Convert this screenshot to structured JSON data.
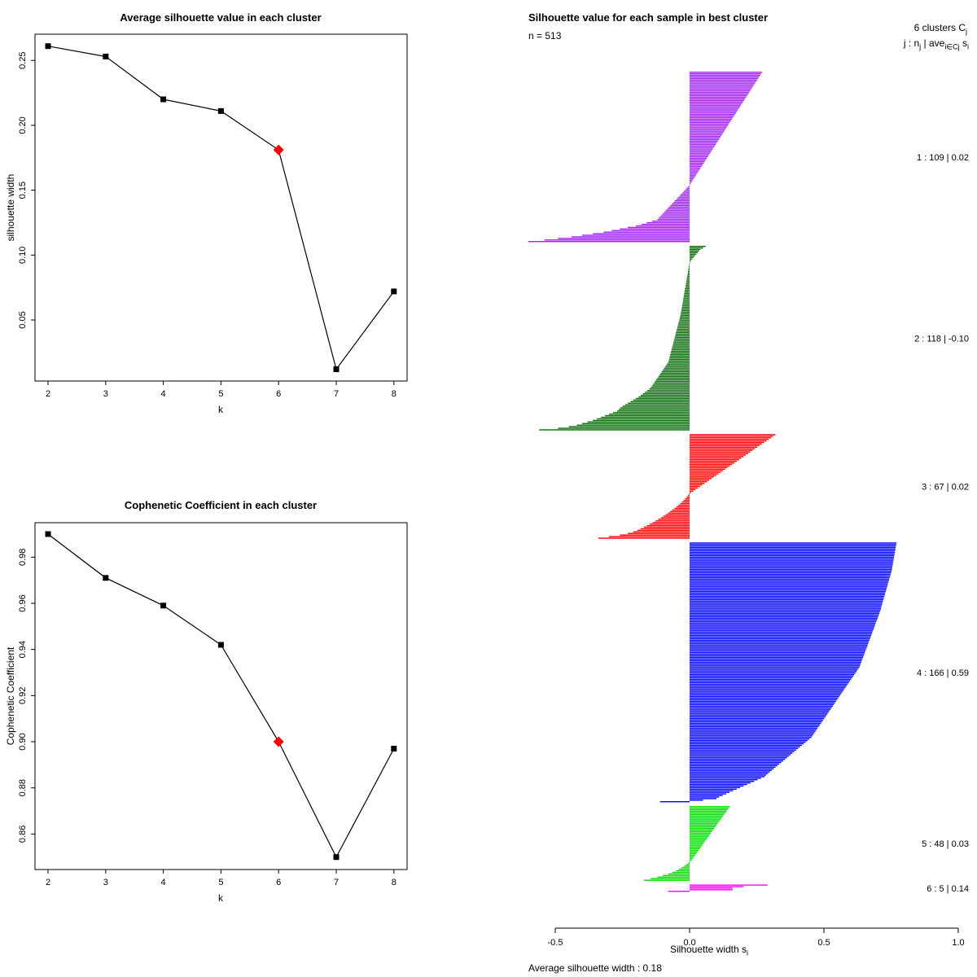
{
  "right_panel": {
    "title": "Silhouette value for each sample in best cluster",
    "n_label": "n = 513",
    "clusters_line": {
      "pre": "6  clusters  C",
      "sub": "j"
    },
    "formula_line": {
      "p1": "j :  n",
      "s1": "j",
      "p2": " | ave",
      "s2": "i∈Cj",
      "p3": "  s",
      "s3": "i"
    },
    "xaxis_label": {
      "pre": "Silhouette width s",
      "sub": "i"
    },
    "average_note": "Average silhouette width :  0.18"
  },
  "chart_data": [
    {
      "type": "line",
      "title": "Average silhouette value in each cluster",
      "xlabel": "k",
      "ylabel": "silhouette width",
      "x": [
        2,
        3,
        4,
        5,
        6,
        7,
        8
      ],
      "y": [
        0.261,
        0.253,
        0.22,
        0.211,
        0.181,
        0.012,
        0.072
      ],
      "xticks": [
        "2",
        "3",
        "4",
        "5",
        "6",
        "7",
        "8"
      ],
      "yticks": [
        "0.05",
        "0.10",
        "0.15",
        "0.20",
        "0.25"
      ],
      "ylim": [
        0.005,
        0.268
      ],
      "highlight_x": 6,
      "highlight_color": "#FF0000",
      "line_color": "#000000",
      "marker": "filled-square",
      "grid": false
    },
    {
      "type": "line",
      "title": "Cophenetic Coefficient in each cluster",
      "xlabel": "k",
      "ylabel": "Cophenetic Coefficient",
      "x": [
        2,
        3,
        4,
        5,
        6,
        7,
        8
      ],
      "y": [
        0.99,
        0.971,
        0.959,
        0.942,
        0.9,
        0.85,
        0.897
      ],
      "xticks": [
        "2",
        "3",
        "4",
        "5",
        "6",
        "7",
        "8"
      ],
      "yticks": [
        "0.86",
        "0.88",
        "0.90",
        "0.92",
        "0.94",
        "0.96",
        "0.98"
      ],
      "ylim": [
        0.845,
        0.993
      ],
      "highlight_x": 6,
      "highlight_color": "#FF0000",
      "line_color": "#000000",
      "marker": "filled-square",
      "grid": false
    },
    {
      "type": "silhouette-bar",
      "title": "Silhouette value for each sample in best cluster",
      "subtitle": "n = 513",
      "n": 513,
      "k": 6,
      "average": 0.18,
      "xticks": [
        "-0.5",
        "0.0",
        "0.5",
        "1.0"
      ],
      "xlim": [
        -0.6,
        1.0
      ],
      "legend_note": "j :  nj | ave i∈Cj  si",
      "clusters": [
        {
          "j": 1,
          "n": 109,
          "ave": "0.02",
          "color": "#A020F0",
          "values": [
            0.27,
            0.266,
            0.263,
            0.259,
            0.255,
            0.251,
            0.248,
            0.244,
            0.24,
            0.236,
            0.233,
            0.229,
            0.225,
            0.221,
            0.218,
            0.214,
            0.21,
            0.206,
            0.203,
            0.199,
            0.195,
            0.191,
            0.188,
            0.184,
            0.18,
            0.176,
            0.173,
            0.169,
            0.165,
            0.161,
            0.158,
            0.154,
            0.15,
            0.146,
            0.143,
            0.139,
            0.135,
            0.131,
            0.128,
            0.124,
            0.12,
            0.116,
            0.113,
            0.109,
            0.105,
            0.101,
            0.098,
            0.094,
            0.09,
            0.086,
            0.083,
            0.079,
            0.075,
            0.071,
            0.068,
            0.064,
            0.06,
            0.056,
            0.053,
            0.049,
            0.045,
            0.041,
            0.038,
            0.034,
            0.03,
            0.026,
            0.023,
            0.019,
            0.015,
            0.011,
            0.008,
            0.004,
            0.0,
            -0.005,
            -0.011,
            -0.016,
            -0.022,
            -0.027,
            -0.033,
            -0.038,
            -0.044,
            -0.049,
            -0.055,
            -0.06,
            -0.066,
            -0.071,
            -0.077,
            -0.082,
            -0.088,
            -0.093,
            -0.099,
            -0.104,
            -0.11,
            -0.115,
            -0.12,
            -0.14,
            -0.16,
            -0.18,
            -0.2,
            -0.23,
            -0.26,
            -0.29,
            -0.32,
            -0.36,
            -0.4,
            -0.44,
            -0.49,
            -0.54,
            -0.6
          ]
        },
        {
          "j": 2,
          "n": 118,
          "ave": "-0.10",
          "color": "#0A6B0A",
          "values": [
            0.06,
            0.05,
            0.04,
            0.035,
            0.03,
            0.025,
            0.02,
            0.015,
            0.01,
            0.005,
            0.0,
            -0.001,
            -0.002,
            -0.003,
            -0.004,
            -0.005,
            -0.006,
            -0.007,
            -0.008,
            -0.009,
            -0.01,
            -0.011,
            -0.012,
            -0.013,
            -0.014,
            -0.015,
            -0.016,
            -0.017,
            -0.018,
            -0.019,
            -0.02,
            -0.021,
            -0.022,
            -0.023,
            -0.024,
            -0.025,
            -0.026,
            -0.027,
            -0.028,
            -0.029,
            -0.03,
            -0.031,
            -0.032,
            -0.033,
            -0.034,
            -0.036,
            -0.037,
            -0.038,
            -0.04,
            -0.042,
            -0.043,
            -0.045,
            -0.046,
            -0.048,
            -0.049,
            -0.051,
            -0.052,
            -0.054,
            -0.055,
            -0.057,
            -0.058,
            -0.06,
            -0.061,
            -0.063,
            -0.064,
            -0.066,
            -0.067,
            -0.069,
            -0.07,
            -0.072,
            -0.073,
            -0.075,
            -0.076,
            -0.078,
            -0.08,
            -0.084,
            -0.088,
            -0.092,
            -0.096,
            -0.1,
            -0.104,
            -0.108,
            -0.112,
            -0.116,
            -0.12,
            -0.124,
            -0.128,
            -0.132,
            -0.136,
            -0.14,
            -0.145,
            -0.15,
            -0.158,
            -0.166,
            -0.174,
            -0.182,
            -0.19,
            -0.2,
            -0.21,
            -0.22,
            -0.23,
            -0.24,
            -0.25,
            -0.258,
            -0.264,
            -0.27,
            -0.285,
            -0.3,
            -0.315,
            -0.33,
            -0.345,
            -0.36,
            -0.38,
            -0.4,
            -0.42,
            -0.45,
            -0.49,
            -0.56
          ]
        },
        {
          "j": 3,
          "n": 67,
          "ave": "0.02",
          "color": "#FF0000",
          "values": [
            0.32,
            0.311,
            0.303,
            0.294,
            0.286,
            0.277,
            0.269,
            0.26,
            0.252,
            0.243,
            0.235,
            0.226,
            0.218,
            0.209,
            0.201,
            0.192,
            0.184,
            0.175,
            0.167,
            0.158,
            0.15,
            0.141,
            0.133,
            0.124,
            0.116,
            0.107,
            0.099,
            0.09,
            0.082,
            0.073,
            0.065,
            0.056,
            0.048,
            0.039,
            0.031,
            0.022,
            0.014,
            0.005,
            -0.003,
            -0.007,
            -0.012,
            -0.017,
            -0.023,
            -0.029,
            -0.035,
            -0.042,
            -0.049,
            -0.056,
            -0.064,
            -0.072,
            -0.08,
            -0.089,
            -0.098,
            -0.107,
            -0.117,
            -0.127,
            -0.137,
            -0.148,
            -0.159,
            -0.17,
            -0.182,
            -0.194,
            -0.21,
            -0.23,
            -0.26,
            -0.3,
            -0.34
          ]
        },
        {
          "j": 4,
          "n": 166,
          "ave": "0.59",
          "color": "#0000FF",
          "values": [
            0.77,
            0.769,
            0.768,
            0.767,
            0.766,
            0.765,
            0.764,
            0.763,
            0.762,
            0.761,
            0.76,
            0.759,
            0.758,
            0.757,
            0.756,
            0.755,
            0.754,
            0.753,
            0.752,
            0.75,
            0.748,
            0.747,
            0.745,
            0.743,
            0.742,
            0.74,
            0.738,
            0.737,
            0.735,
            0.733,
            0.732,
            0.73,
            0.728,
            0.727,
            0.725,
            0.723,
            0.722,
            0.72,
            0.718,
            0.717,
            0.715,
            0.713,
            0.712,
            0.71,
            0.708,
            0.706,
            0.704,
            0.702,
            0.7,
            0.698,
            0.695,
            0.693,
            0.691,
            0.689,
            0.687,
            0.685,
            0.682,
            0.68,
            0.678,
            0.676,
            0.674,
            0.672,
            0.669,
            0.667,
            0.665,
            0.663,
            0.661,
            0.659,
            0.656,
            0.654,
            0.652,
            0.65,
            0.648,
            0.646,
            0.643,
            0.641,
            0.639,
            0.637,
            0.635,
            0.633,
            0.629,
            0.625,
            0.621,
            0.617,
            0.613,
            0.609,
            0.605,
            0.601,
            0.597,
            0.593,
            0.589,
            0.585,
            0.581,
            0.577,
            0.573,
            0.569,
            0.565,
            0.561,
            0.557,
            0.553,
            0.549,
            0.545,
            0.541,
            0.537,
            0.533,
            0.529,
            0.525,
            0.521,
            0.517,
            0.513,
            0.509,
            0.505,
            0.501,
            0.497,
            0.493,
            0.489,
            0.485,
            0.481,
            0.477,
            0.473,
            0.469,
            0.465,
            0.461,
            0.457,
            0.453,
            0.446,
            0.439,
            0.432,
            0.425,
            0.418,
            0.411,
            0.404,
            0.397,
            0.39,
            0.383,
            0.376,
            0.369,
            0.362,
            0.355,
            0.348,
            0.341,
            0.334,
            0.327,
            0.32,
            0.313,
            0.306,
            0.299,
            0.292,
            0.285,
            0.28,
            0.266,
            0.253,
            0.24,
            0.227,
            0.214,
            0.201,
            0.188,
            0.175,
            0.162,
            0.149,
            0.136,
            0.123,
            0.11,
            0.1,
            0.05,
            -0.11
          ]
        },
        {
          "j": 5,
          "n": 48,
          "ave": "0.03",
          "color": "#00DD00",
          "values": [
            0.15,
            0.146,
            0.142,
            0.138,
            0.134,
            0.129,
            0.125,
            0.121,
            0.117,
            0.113,
            0.108,
            0.104,
            0.1,
            0.096,
            0.092,
            0.088,
            0.083,
            0.079,
            0.075,
            0.071,
            0.067,
            0.063,
            0.058,
            0.054,
            0.05,
            0.046,
            0.042,
            0.038,
            0.033,
            0.029,
            0.025,
            0.021,
            0.017,
            0.013,
            0.008,
            0.004,
            -0.005,
            -0.012,
            -0.02,
            -0.03,
            -0.04,
            -0.05,
            -0.065,
            -0.08,
            -0.1,
            -0.12,
            -0.145,
            -0.17
          ]
        },
        {
          "j": 6,
          "n": 5,
          "ave": "0.14",
          "color": "#FF00FF",
          "values": [
            0.29,
            0.2,
            0.16,
            0.16,
            -0.08
          ]
        }
      ]
    }
  ]
}
